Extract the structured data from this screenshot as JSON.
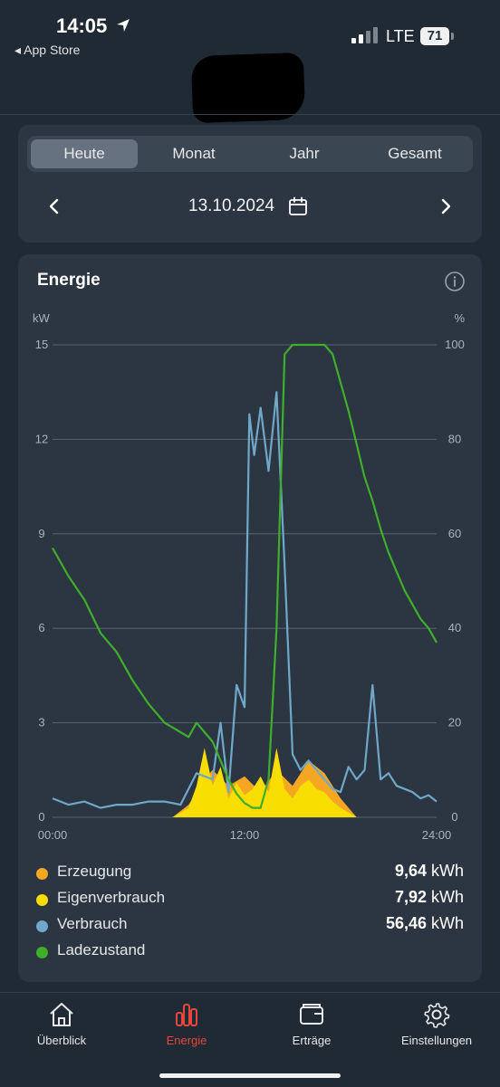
{
  "status_bar": {
    "time": "14:05",
    "back_label": "◂ App Store",
    "network": "LTE",
    "battery": "71"
  },
  "period_tabs": [
    {
      "label": "Heute",
      "active": true
    },
    {
      "label": "Monat",
      "active": false
    },
    {
      "label": "Jahr",
      "active": false
    },
    {
      "label": "Gesamt",
      "active": false
    }
  ],
  "date": "13.10.2024",
  "chart_card": {
    "title": "Energie"
  },
  "chart_data": {
    "type": "line",
    "x_unit": "time",
    "x_ticks": [
      "00:00",
      "12:00",
      "24:00"
    ],
    "y_left": {
      "label": "kW",
      "ticks": [
        "0",
        "3",
        "6",
        "9",
        "12",
        "15"
      ],
      "range": [
        0,
        15
      ]
    },
    "y_right": {
      "label": "%",
      "ticks": [
        "0",
        "20",
        "40",
        "60",
        "80",
        "100"
      ],
      "range": [
        0,
        100
      ]
    },
    "grid": true,
    "series": [
      {
        "name": "Erzeugung",
        "color": "#f5a623",
        "axis": "left",
        "type": "area",
        "x": [
          7.5,
          8.5,
          9.5,
          10.0,
          11.0,
          12.0,
          13.0,
          14.0,
          15.0,
          16.0,
          17.0,
          18.0,
          19.0
        ],
        "y": [
          0,
          0.4,
          1.2,
          1.5,
          1.0,
          1.3,
          0.8,
          1.5,
          1.0,
          1.8,
          1.4,
          0.6,
          0
        ]
      },
      {
        "name": "Eigenverbrauch",
        "color": "#f7dd00",
        "axis": "left",
        "type": "area",
        "x": [
          7.5,
          8.5,
          9.0,
          9.5,
          10.0,
          10.5,
          11.0,
          11.5,
          12.0,
          12.5,
          13.0,
          13.5,
          14.0,
          14.5,
          15.0,
          15.5,
          16.0,
          16.5,
          17.0,
          17.5,
          18.0,
          19.0
        ],
        "y": [
          0,
          0.3,
          1.0,
          2.2,
          1.0,
          1.6,
          0.6,
          1.1,
          0.7,
          0.9,
          1.3,
          0.8,
          2.2,
          0.9,
          0.6,
          1.0,
          1.2,
          0.9,
          0.8,
          0.5,
          0.3,
          0
        ]
      },
      {
        "name": "Verbrauch",
        "color": "#6fa8c8",
        "axis": "left",
        "type": "line",
        "x": [
          0,
          1,
          2,
          3,
          4,
          5,
          6,
          7,
          8,
          9,
          10,
          10.5,
          11,
          11.5,
          12,
          12.3,
          12.6,
          13,
          13.5,
          14,
          14.5,
          15,
          15.5,
          16,
          16.5,
          17,
          17.5,
          18,
          18.5,
          19,
          19.5,
          20,
          20.5,
          21,
          21.5,
          22,
          22.5,
          23,
          23.5,
          24
        ],
        "y": [
          0.6,
          0.4,
          0.5,
          0.3,
          0.4,
          0.4,
          0.5,
          0.5,
          0.4,
          1.4,
          1.2,
          3.0,
          0.8,
          4.2,
          3.5,
          12.8,
          11.5,
          13.0,
          11.0,
          13.5,
          8.0,
          2.0,
          1.5,
          1.8,
          1.5,
          1.2,
          0.9,
          0.8,
          1.6,
          1.2,
          1.5,
          4.2,
          1.2,
          1.4,
          1.0,
          0.9,
          0.8,
          0.6,
          0.7,
          0.5
        ]
      },
      {
        "name": "Ladezustand",
        "color": "#3fae2a",
        "axis": "right",
        "type": "line",
        "x": [
          0,
          1,
          2,
          3,
          4,
          5,
          6,
          7,
          8,
          8.5,
          9,
          9.5,
          10,
          10.5,
          11,
          11.5,
          12,
          12.5,
          13,
          13.5,
          14,
          14.5,
          15,
          15.5,
          16,
          16.5,
          17,
          17.5,
          18,
          18.5,
          19,
          19.5,
          20,
          20.5,
          21,
          21.5,
          22,
          22.5,
          23,
          23.5,
          24
        ],
        "y": [
          57,
          51,
          46,
          39,
          35,
          29,
          24,
          20,
          18,
          17,
          20,
          18,
          16,
          12,
          8,
          5,
          3,
          2,
          2,
          8,
          40,
          98,
          100,
          100,
          100,
          100,
          100,
          98,
          92,
          86,
          79,
          72,
          67,
          61,
          56,
          52,
          48,
          45,
          42,
          40,
          37
        ]
      }
    ]
  },
  "legend": [
    {
      "label": "Erzeugung",
      "color": "#f5a623",
      "value": "9,64",
      "unit": "kWh"
    },
    {
      "label": "Eigenverbrauch",
      "color": "#f7dd00",
      "value": "7,92",
      "unit": "kWh"
    },
    {
      "label": "Verbrauch",
      "color": "#6fa8c8",
      "value": "56,46",
      "unit": "kWh"
    },
    {
      "label": "Ladezustand",
      "color": "#3fae2a",
      "value": "",
      "unit": ""
    }
  ],
  "tabbar": [
    {
      "label": "Überblick",
      "icon": "home-icon",
      "active": false
    },
    {
      "label": "Energie",
      "icon": "bar-chart-icon",
      "active": true
    },
    {
      "label": "Erträge",
      "icon": "wallet-icon",
      "active": false
    },
    {
      "label": "Einstellungen",
      "icon": "gear-icon",
      "active": false
    }
  ]
}
